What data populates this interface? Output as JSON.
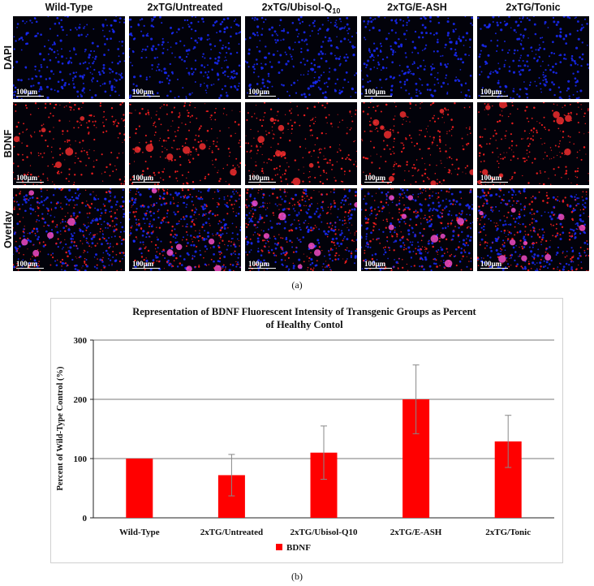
{
  "panel_a": {
    "column_headers": [
      "Wild-Type",
      "2xTG/Untreated",
      "2xTG/Ubisol-Q",
      "2xTG/E-ASH",
      "2xTG/Tonic"
    ],
    "column_header_subscript": "10",
    "row_labels": [
      "DAPI",
      "BDNF",
      "Overlay"
    ],
    "scale_bar": "100µm",
    "caption": "(a)",
    "channel_colors": {
      "DAPI": "#1a2cff",
      "BDNF": "#ff2020",
      "Overlay": "#ff40c0"
    }
  },
  "panel_b": {
    "caption": "(b)",
    "chart_data": {
      "type": "bar",
      "title_line1": "Representation of BDNF Fluorescent Intensity of Transgenic Groups as Percent",
      "title_line2": "of Healthy Contol",
      "ylabel": "Percent of Wild-Type Control (%)",
      "xlabel": "",
      "categories": [
        "Wild-Type",
        "2xTG/Untreated",
        "2xTG/Ubisol-Q10",
        "2xTG/E-ASH",
        "2xTG/Tonic"
      ],
      "series": [
        {
          "name": "BDNF",
          "values": [
            100,
            72,
            110,
            200,
            129
          ],
          "errors": [
            0,
            35,
            45,
            58,
            44
          ],
          "color": "#ff0000"
        }
      ],
      "ylim": [
        0,
        300
      ],
      "yticks": [
        "0",
        "100",
        "200",
        "300"
      ],
      "grid": true,
      "legend_position": "bottom-center"
    }
  }
}
